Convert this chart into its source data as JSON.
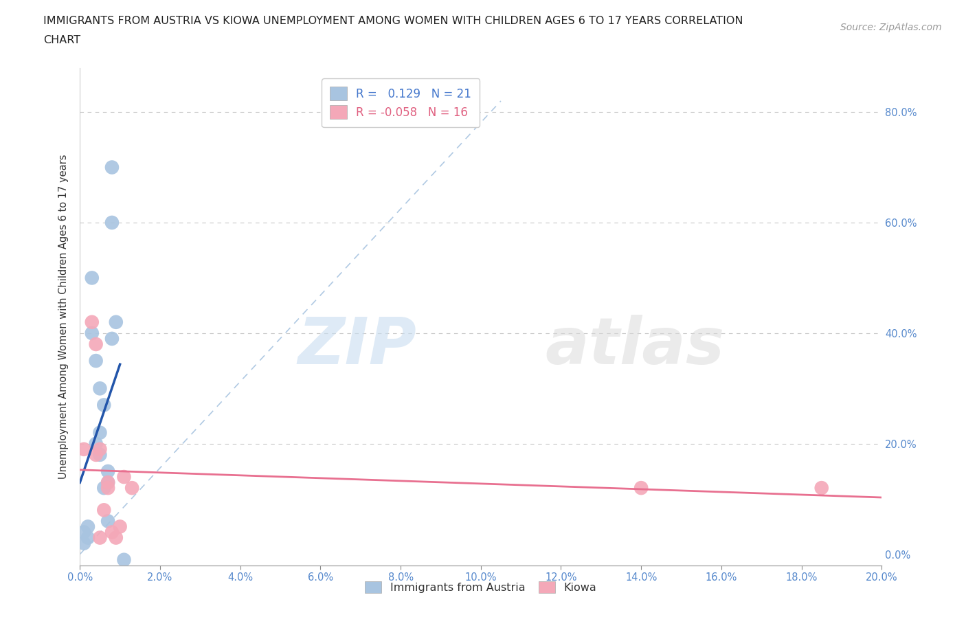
{
  "title_line1": "IMMIGRANTS FROM AUSTRIA VS KIOWA UNEMPLOYMENT AMONG WOMEN WITH CHILDREN AGES 6 TO 17 YEARS CORRELATION",
  "title_line2": "CHART",
  "source": "Source: ZipAtlas.com",
  "ylabel_label": "Unemployment Among Women with Children Ages 6 to 17 years",
  "xlim": [
    0.0,
    0.2
  ],
  "ylim": [
    -0.02,
    0.88
  ],
  "blue_scatter_x": [
    0.001,
    0.001,
    0.002,
    0.002,
    0.003,
    0.003,
    0.004,
    0.004,
    0.005,
    0.005,
    0.005,
    0.006,
    0.006,
    0.007,
    0.007,
    0.007,
    0.008,
    0.008,
    0.008,
    0.009,
    0.011
  ],
  "blue_scatter_y": [
    0.04,
    0.02,
    0.05,
    0.03,
    0.5,
    0.4,
    0.35,
    0.2,
    0.3,
    0.18,
    0.22,
    0.27,
    0.12,
    0.15,
    0.13,
    0.06,
    0.6,
    0.7,
    0.39,
    0.42,
    -0.01
  ],
  "pink_scatter_x": [
    0.001,
    0.003,
    0.004,
    0.004,
    0.005,
    0.005,
    0.006,
    0.007,
    0.007,
    0.008,
    0.009,
    0.01,
    0.011,
    0.013,
    0.14,
    0.185
  ],
  "pink_scatter_y": [
    0.19,
    0.42,
    0.38,
    0.18,
    0.03,
    0.19,
    0.08,
    0.13,
    0.12,
    0.04,
    0.03,
    0.05,
    0.14,
    0.12,
    0.12,
    0.12
  ],
  "blue_R": 0.129,
  "blue_N": 21,
  "pink_R": -0.058,
  "pink_N": 16,
  "blue_color": "#a8c4e0",
  "pink_color": "#f4a8b8",
  "blue_line_color": "#2255aa",
  "pink_line_color": "#e87090",
  "diagonal_line_color": "#a8c4e0",
  "background_color": "#ffffff",
  "watermark_zip": "ZIP",
  "watermark_atlas": "atlas",
  "legend_label_blue": "Immigrants from Austria",
  "legend_label_pink": "Kiowa",
  "y_tick_vals": [
    0.0,
    0.2,
    0.4,
    0.6,
    0.8
  ],
  "x_tick_vals": [
    0.0,
    0.02,
    0.04,
    0.06,
    0.08,
    0.1,
    0.12,
    0.14,
    0.16,
    0.18,
    0.2
  ]
}
